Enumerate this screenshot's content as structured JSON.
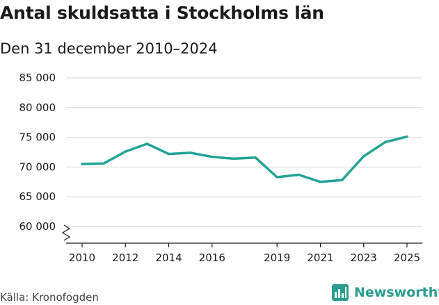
{
  "title": "Antal skuldsatta i Stockholms län",
  "subtitle": "Den 31 december 2010–2024",
  "source": "Källa: Kronofogden",
  "brand": "Newsworthy",
  "colors": {
    "line": "#22a396",
    "grid": "#d6d6d6",
    "axis": "#1a1a1a",
    "brand": "#2a9d8f"
  },
  "chart_data": {
    "type": "line",
    "title": "Antal skuldsatta i Stockholms län",
    "subtitle": "Den 31 december 2010–2024",
    "xlabel": "",
    "ylabel": "",
    "x": [
      2010,
      2011,
      2012,
      2013,
      2014,
      2015,
      2016,
      2017,
      2018,
      2019,
      2020,
      2021,
      2022,
      2023,
      2024,
      2025
    ],
    "series": [
      {
        "name": "Antal skuldsatta",
        "values": [
          70500,
          70600,
          72600,
          73900,
          72200,
          72400,
          71700,
          71400,
          71600,
          68300,
          68700,
          67500,
          67800,
          71800,
          74200,
          75100
        ]
      }
    ],
    "xticks": [
      2010,
      2012,
      2014,
      2016,
      2019,
      2021,
      2023,
      2025
    ],
    "xtick_labels": [
      "2010",
      "2012",
      "2014",
      "2016",
      "2019",
      "2021",
      "2023",
      "2025"
    ],
    "yticks": [
      60000,
      65000,
      70000,
      75000,
      80000,
      85000
    ],
    "ytick_labels": [
      "60 000",
      "65 000",
      "70 000",
      "75 000",
      "80 000",
      "85 000"
    ],
    "xlim": [
      2010,
      2025
    ],
    "ylim": [
      60000,
      85000
    ],
    "y_axis_break": true,
    "grid": true
  }
}
